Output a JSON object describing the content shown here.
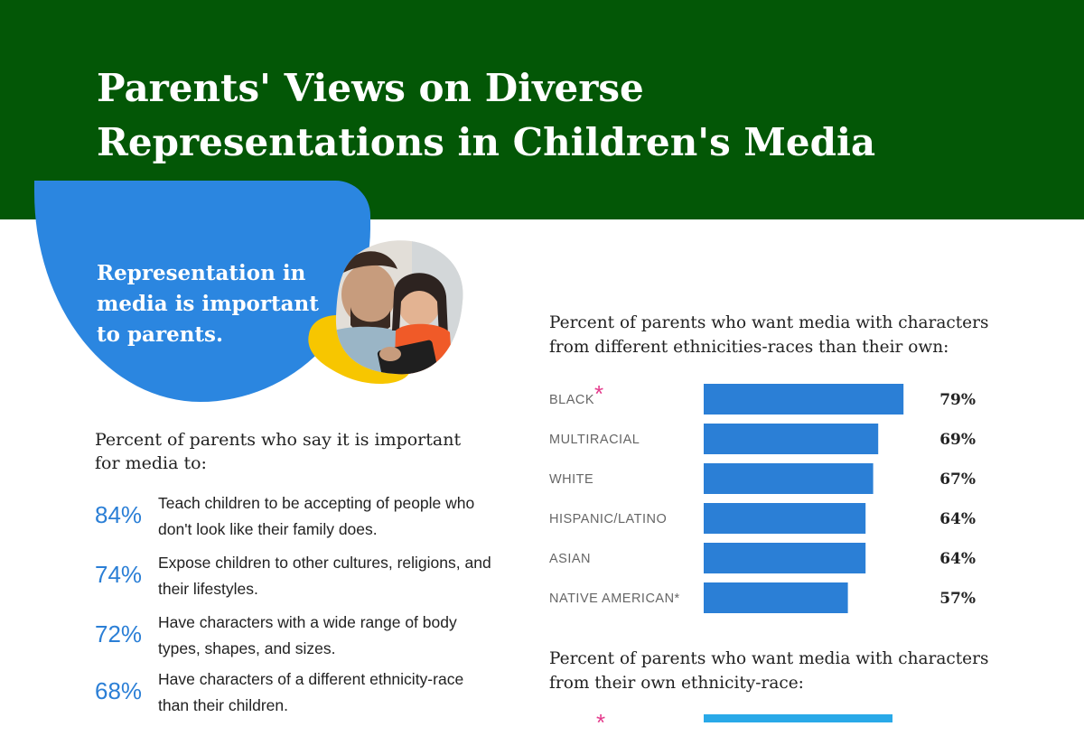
{
  "header": {
    "title": "Parents' Views on Diverse Representations in Children's Media"
  },
  "intro_card": {
    "text": "Representation in media is important to parents."
  },
  "importance": {
    "heading": "Percent of parents who say it is important for media to:",
    "items": [
      {
        "pct": "84%",
        "text": "Teach children to be accepting of people who don't look like their family does."
      },
      {
        "pct": "74%",
        "text": "Expose children to other cultures, religions, and their lifestyles."
      },
      {
        "pct": "72%",
        "text": "Have characters with a wide range of body types, shapes, and sizes."
      },
      {
        "pct": "68%",
        "text": "Have characters of a different ethnicity-race than their children."
      }
    ]
  },
  "charts": {
    "different_heading": "Percent of parents who want media with characters from different ethnicities-races than their own:",
    "own_heading": "Percent of parents who want media with characters from their own ethnicity-race:",
    "star_symbol": "*"
  },
  "colors": {
    "header_bg": "#035706",
    "blob": "#2b86e0",
    "bar": "#2b7fd6",
    "bar_light": "#29a9e8",
    "accent_star": "#e43b8c",
    "photo_yellow": "#f7c600"
  },
  "chart_data": [
    {
      "type": "bar",
      "orientation": "horizontal",
      "categories": [
        "BLACK",
        "MULTIRACIAL",
        "WHITE",
        "HISPANIC/LATINO",
        "ASIAN",
        "NATIVE AMERICAN*"
      ],
      "values": [
        79,
        69,
        67,
        64,
        64,
        57
      ],
      "value_labels": [
        "79%",
        "69%",
        "67%",
        "64%",
        "64%",
        "57%"
      ],
      "highlight": [
        "BLACK"
      ]
    }
  ]
}
